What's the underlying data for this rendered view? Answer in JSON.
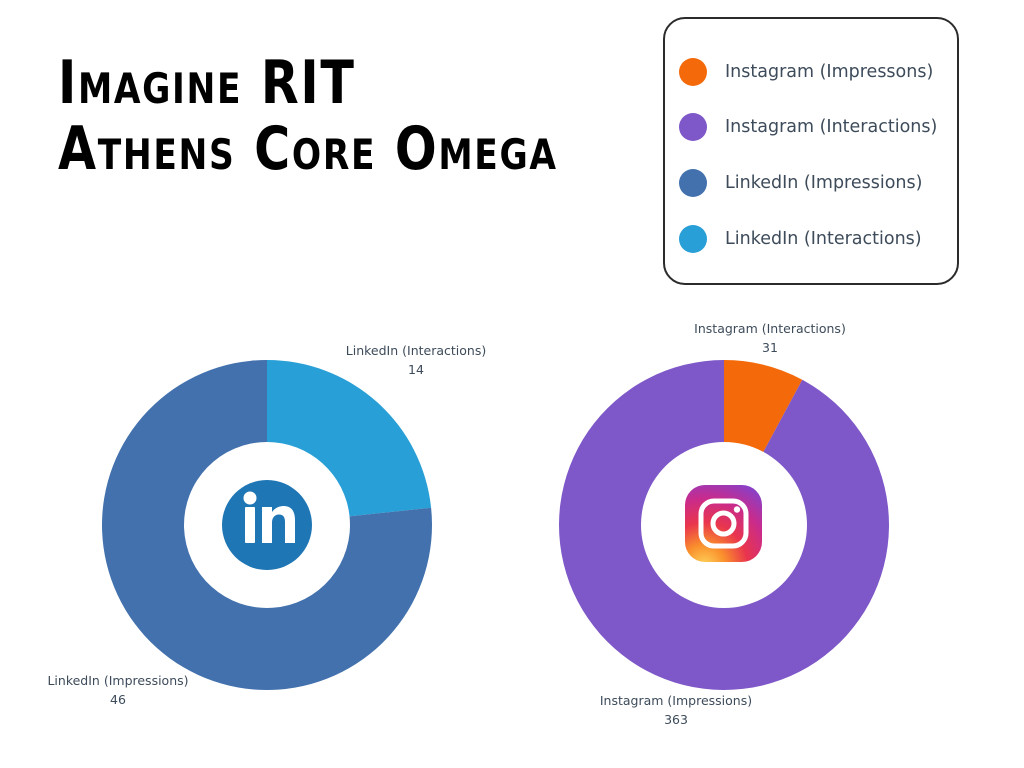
{
  "title": {
    "line1": "Imagine RIT",
    "line2": "Athens Core Omega"
  },
  "legend": {
    "items": [
      {
        "label": "Instagram (Impressons)",
        "color": "#f46a0b"
      },
      {
        "label": "Instagram (Interactions)",
        "color": "#7e57c8"
      },
      {
        "label": "LinkedIn (Impressions)",
        "color": "#4271ad"
      },
      {
        "label": "LinkedIn (Interactions)",
        "color": "#289fd6"
      }
    ]
  },
  "icons": {
    "linkedin": "linkedin-logo-icon",
    "instagram": "instagram-logo-icon"
  },
  "chart_data": [
    {
      "type": "pie",
      "variant": "donut",
      "slices": [
        {
          "label": "LinkedIn (Interactions)",
          "value": 14,
          "color": "#289fd6"
        },
        {
          "label": "LinkedIn (Impressions)",
          "value": 46,
          "color": "#4271ad"
        }
      ]
    },
    {
      "type": "pie",
      "variant": "donut",
      "slices": [
        {
          "label": "Instagram (Interactions)",
          "value": 31,
          "color": "#f46a0b"
        },
        {
          "label": "Instagram (Impressions)",
          "value": 363,
          "color": "#7e57c8"
        }
      ]
    }
  ]
}
